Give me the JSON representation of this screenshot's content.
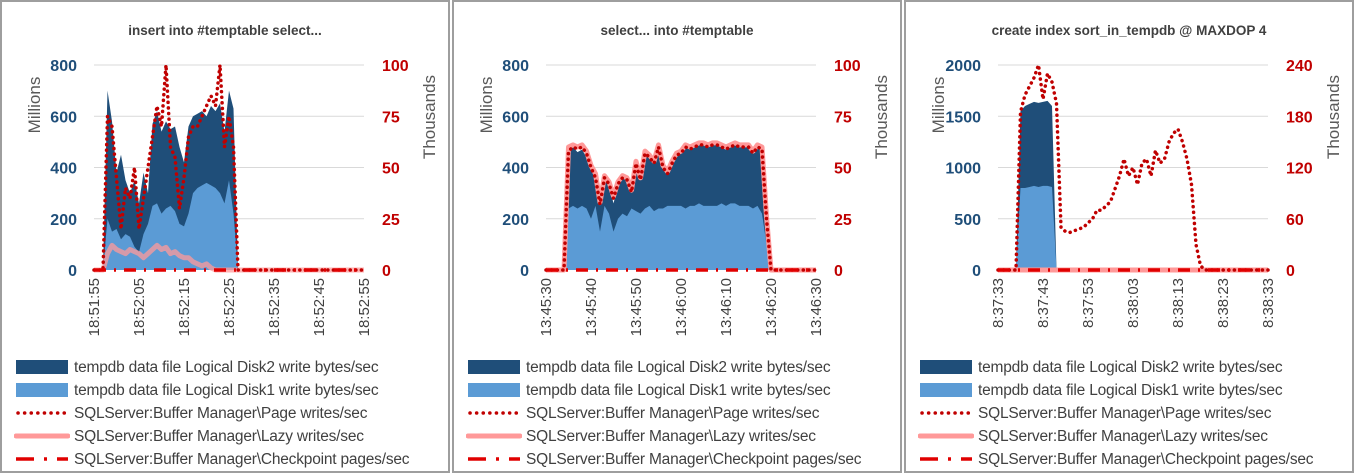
{
  "colors": {
    "disk2": "#1f4e79",
    "disk1": "#5b9bd5",
    "page_writes": "#c00000",
    "lazy_writes": "#ff9999",
    "checkpoint": "#e00000",
    "left_axis_text": "#1f4e79",
    "right_axis_text": "#c00000",
    "grid": "#d9d9d9"
  },
  "legend": [
    {
      "key": "disk2",
      "label": "tempdb data file Logical Disk2 write bytes/sec",
      "style": "area"
    },
    {
      "key": "disk1",
      "label": "tempdb data file Logical Disk1 write bytes/sec",
      "style": "area"
    },
    {
      "key": "page_writes",
      "label": "SQLServer:Buffer Manager\\Page writes/sec",
      "style": "dotted"
    },
    {
      "key": "lazy_writes",
      "label": "SQLServer:Buffer Manager\\Lazy writes/sec",
      "style": "thick"
    },
    {
      "key": "checkpoint",
      "label": "SQLServer:Buffer Manager\\Checkpoint pages/sec",
      "style": "dashdot"
    }
  ],
  "chart_data": [
    {
      "type": "area",
      "title": "insert into #temptable select...",
      "ylabel": "Millions",
      "y2label": "Thousands",
      "ylim": [
        0,
        800
      ],
      "yticks": [
        "0",
        "200",
        "400",
        "600",
        "800"
      ],
      "y2lim": [
        0,
        100
      ],
      "y2ticks": [
        "0",
        "25",
        "50",
        "75",
        "100"
      ],
      "xticks": [
        "18:51:55",
        "18:52:05",
        "18:52:15",
        "18:52:25",
        "18:52:35",
        "18:52:45",
        "18:52:55"
      ],
      "xlim_seconds": [
        0,
        60
      ],
      "x_seconds": [
        0,
        2,
        3,
        4,
        5,
        6,
        7,
        8,
        9,
        10,
        11,
        12,
        13,
        14,
        15,
        16,
        17,
        18,
        19,
        20,
        21,
        22,
        23,
        24,
        25,
        26,
        27,
        28,
        29,
        30,
        31,
        32,
        60
      ],
      "series": [
        {
          "key": "disk1",
          "name": "tempdb data file Logical Disk1 write bytes/sec",
          "axis": "left",
          "values": [
            0,
            0,
            200,
            150,
            160,
            120,
            140,
            130,
            90,
            70,
            140,
            180,
            250,
            260,
            220,
            240,
            250,
            230,
            180,
            170,
            220,
            300,
            320,
            330,
            340,
            330,
            320,
            300,
            260,
            350,
            220,
            0,
            0
          ]
        },
        {
          "key": "disk2",
          "name": "tempdb data file Logical Disk2 write bytes/sec",
          "axis": "left",
          "values": [
            0,
            0,
            700,
            580,
            380,
            450,
            350,
            300,
            350,
            260,
            380,
            300,
            570,
            620,
            540,
            580,
            550,
            560,
            480,
            420,
            560,
            600,
            610,
            620,
            600,
            640,
            620,
            650,
            540,
            700,
            630,
            0,
            0
          ]
        },
        {
          "key": "page_writes",
          "name": "SQLServer:Buffer Manager\\Page writes/sec",
          "axis": "right",
          "values": [
            0,
            0,
            75,
            70,
            45,
            20,
            40,
            35,
            50,
            20,
            35,
            50,
            65,
            80,
            70,
            100,
            60,
            55,
            30,
            45,
            65,
            70,
            70,
            75,
            80,
            85,
            80,
            100,
            60,
            75,
            60,
            0,
            0
          ]
        },
        {
          "key": "lazy_writes",
          "name": "SQLServer:Buffer Manager\\Lazy writes/sec",
          "axis": "right",
          "values": [
            0,
            0,
            8,
            12,
            10,
            9,
            8,
            10,
            9,
            8,
            6,
            8,
            10,
            12,
            10,
            11,
            8,
            9,
            7,
            6,
            6,
            4,
            3,
            2,
            3,
            1,
            0,
            0,
            0,
            0,
            0,
            0,
            0
          ]
        },
        {
          "key": "checkpoint",
          "name": "SQLServer:Buffer Manager\\Checkpoint pages/sec",
          "axis": "right",
          "values": [
            0,
            0,
            0,
            0,
            0,
            0,
            0,
            0,
            0,
            0,
            0,
            0,
            0,
            0,
            0,
            0,
            0,
            0,
            0,
            0,
            0,
            0,
            0,
            0,
            0,
            0,
            0,
            0,
            0,
            0,
            0,
            0,
            0
          ]
        }
      ]
    },
    {
      "type": "area",
      "title": "select... into #temptable",
      "ylabel": "Millions",
      "y2label": "Thousands",
      "ylim": [
        0,
        800
      ],
      "yticks": [
        "0",
        "200",
        "400",
        "600",
        "800"
      ],
      "y2lim": [
        0,
        100
      ],
      "y2ticks": [
        "0",
        "25",
        "50",
        "75",
        "100"
      ],
      "xticks": [
        "13:45:30",
        "13:45:40",
        "13:45:50",
        "13:46:00",
        "13:46:10",
        "13:46:20",
        "13:46:30"
      ],
      "xlim_seconds": [
        0,
        60
      ],
      "x_seconds": [
        0,
        1,
        2,
        3,
        4,
        5,
        6,
        7,
        8,
        9,
        10,
        11,
        12,
        13,
        14,
        15,
        16,
        17,
        18,
        19,
        20,
        21,
        22,
        23,
        24,
        25,
        26,
        27,
        28,
        29,
        30,
        31,
        32,
        33,
        34,
        35,
        36,
        37,
        38,
        39,
        40,
        41,
        42,
        43,
        44,
        45,
        46,
        47,
        48,
        49,
        50,
        51,
        52,
        60
      ],
      "series": [
        {
          "key": "disk1",
          "name": "tempdb data file Logical Disk1 write bytes/sec",
          "axis": "left",
          "values": [
            0,
            0,
            0,
            0,
            0,
            240,
            250,
            240,
            250,
            240,
            200,
            250,
            150,
            250,
            220,
            150,
            200,
            220,
            210,
            240,
            230,
            220,
            240,
            250,
            230,
            240,
            240,
            250,
            250,
            250,
            250,
            240,
            250,
            250,
            260,
            250,
            250,
            250,
            250,
            260,
            250,
            260,
            260,
            250,
            250,
            250,
            240,
            250,
            220,
            100,
            0,
            0,
            0,
            0
          ]
        },
        {
          "key": "disk2",
          "name": "tempdb data file Logical Disk2 write bytes/sec",
          "axis": "left",
          "values": [
            0,
            0,
            0,
            0,
            0,
            470,
            480,
            460,
            470,
            440,
            400,
            380,
            250,
            360,
            330,
            260,
            330,
            360,
            350,
            300,
            420,
            350,
            460,
            440,
            420,
            480,
            400,
            380,
            420,
            450,
            460,
            480,
            470,
            480,
            490,
            490,
            480,
            490,
            490,
            480,
            470,
            480,
            490,
            480,
            480,
            480,
            460,
            480,
            470,
            200,
            0,
            0,
            0,
            0
          ]
        },
        {
          "key": "page_writes",
          "name": "SQLServer:Buffer Manager\\Page writes/sec",
          "axis": "right",
          "values": [
            0,
            0,
            0,
            0,
            0,
            58,
            60,
            59,
            60,
            57,
            50,
            45,
            32,
            45,
            42,
            35,
            42,
            45,
            44,
            38,
            52,
            44,
            57,
            55,
            52,
            60,
            50,
            47,
            52,
            56,
            57,
            60,
            59,
            60,
            61,
            61,
            60,
            61,
            61,
            60,
            59,
            60,
            61,
            60,
            60,
            60,
            57,
            60,
            59,
            25,
            0,
            0,
            0,
            0
          ]
        },
        {
          "key": "lazy_writes",
          "name": "SQLServer:Buffer Manager\\Lazy writes/sec",
          "axis": "right",
          "values": [
            0,
            0,
            0,
            0,
            0,
            60,
            61,
            60,
            61,
            58,
            51,
            47,
            33,
            46,
            43,
            36,
            43,
            46,
            45,
            39,
            53,
            45,
            58,
            56,
            53,
            61,
            51,
            48,
            53,
            57,
            58,
            61,
            60,
            61,
            62,
            62,
            61,
            62,
            62,
            61,
            60,
            61,
            62,
            61,
            61,
            61,
            58,
            61,
            60,
            26,
            0,
            0,
            0,
            0
          ]
        },
        {
          "key": "checkpoint",
          "name": "SQLServer:Buffer Manager\\Checkpoint pages/sec",
          "axis": "right",
          "values": [
            0,
            0,
            0,
            0,
            0,
            0,
            0,
            0,
            0,
            0,
            0,
            0,
            0,
            0,
            0,
            0,
            0,
            0,
            0,
            0,
            0,
            0,
            0,
            0,
            0,
            0,
            0,
            0,
            0,
            0,
            0,
            0,
            0,
            0,
            0,
            0,
            0,
            0,
            0,
            0,
            0,
            0,
            0,
            0,
            0,
            0,
            0,
            0,
            0,
            0,
            0,
            0,
            0,
            0
          ]
        }
      ]
    },
    {
      "type": "area",
      "title": "create index sort_in_tempdb @ MAXDOP 4",
      "ylabel": "Millions",
      "y2label": "Thousands",
      "ylim": [
        0,
        2000
      ],
      "yticks": [
        "0",
        "500",
        "1000",
        "1500",
        "2000"
      ],
      "y2lim": [
        0,
        240
      ],
      "y2ticks": [
        "0",
        "60",
        "120",
        "180",
        "240"
      ],
      "xticks": [
        "8:37:33",
        "8:37:43",
        "8:37:53",
        "8:38:03",
        "8:38:13",
        "8:38:23",
        "8:38:33"
      ],
      "xlim_seconds": [
        0,
        60
      ],
      "x_seconds": [
        0,
        1,
        2,
        3,
        4,
        5,
        6,
        7,
        8,
        9,
        10,
        11,
        12,
        13,
        14,
        15,
        16,
        17,
        18,
        19,
        20,
        21,
        22,
        23,
        24,
        25,
        26,
        27,
        28,
        29,
        30,
        31,
        32,
        33,
        34,
        35,
        36,
        37,
        38,
        39,
        40,
        41,
        42,
        43,
        44,
        45,
        46,
        47,
        48,
        49,
        50,
        51,
        52,
        53,
        60
      ],
      "series": [
        {
          "key": "disk1",
          "name": "tempdb data file Logical Disk1 write bytes/sec",
          "axis": "left",
          "values": [
            0,
            0,
            0,
            0,
            0,
            800,
            800,
            810,
            820,
            810,
            820,
            820,
            810,
            0,
            0,
            0,
            0,
            0,
            0,
            0,
            0,
            0,
            0,
            0,
            0,
            0,
            0,
            0,
            0,
            0,
            0,
            0,
            0,
            0,
            0,
            0,
            0,
            0,
            0,
            0,
            0,
            0,
            0,
            0,
            0,
            0,
            0,
            0,
            0,
            0,
            0,
            0,
            0,
            0,
            0
          ]
        },
        {
          "key": "disk2",
          "name": "tempdb data file Logical Disk2 write bytes/sec",
          "axis": "left",
          "values": [
            0,
            0,
            0,
            0,
            0,
            1550,
            1600,
            1620,
            1640,
            1630,
            1640,
            1650,
            1600,
            0,
            0,
            0,
            0,
            0,
            0,
            0,
            0,
            0,
            0,
            0,
            0,
            0,
            0,
            0,
            0,
            0,
            0,
            0,
            0,
            0,
            0,
            0,
            0,
            0,
            0,
            0,
            0,
            0,
            0,
            0,
            0,
            0,
            0,
            0,
            0,
            0,
            0,
            0,
            0,
            0,
            0
          ]
        },
        {
          "key": "page_writes",
          "name": "SQLServer:Buffer Manager\\Page writes/sec",
          "axis": "right",
          "values": [
            0,
            0,
            0,
            0,
            0,
            185,
            205,
            215,
            225,
            240,
            200,
            230,
            220,
            195,
            50,
            45,
            44,
            46,
            48,
            50,
            55,
            60,
            70,
            70,
            75,
            80,
            95,
            110,
            130,
            110,
            120,
            100,
            125,
            130,
            110,
            140,
            125,
            130,
            150,
            160,
            165,
            150,
            130,
            100,
            30,
            5,
            0,
            0,
            0,
            0,
            0,
            0,
            0,
            0,
            0
          ]
        },
        {
          "key": "lazy_writes",
          "name": "SQLServer:Buffer Manager\\Lazy writes/sec",
          "axis": "right",
          "values": [
            0,
            0,
            0,
            0,
            0,
            0,
            0,
            0,
            0,
            0,
            0,
            0,
            0,
            0,
            0,
            0,
            0,
            0,
            0,
            0,
            0,
            0,
            0,
            0,
            0,
            0,
            0,
            0,
            0,
            0,
            0,
            0,
            0,
            0,
            0,
            0,
            0,
            0,
            0,
            0,
            0,
            0,
            0,
            0,
            0,
            0,
            0,
            0,
            0,
            0,
            0,
            0,
            0,
            0,
            0
          ]
        },
        {
          "key": "checkpoint",
          "name": "SQLServer:Buffer Manager\\Checkpoint pages/sec",
          "axis": "right",
          "values": [
            0,
            0,
            0,
            0,
            0,
            0,
            0,
            0,
            0,
            0,
            0,
            0,
            0,
            0,
            0,
            0,
            0,
            0,
            0,
            0,
            0,
            0,
            0,
            0,
            0,
            0,
            0,
            0,
            0,
            0,
            0,
            0,
            0,
            0,
            0,
            0,
            0,
            0,
            0,
            0,
            0,
            0,
            0,
            0,
            0,
            0,
            0,
            0,
            0,
            0,
            0,
            0,
            0,
            0,
            0
          ]
        }
      ]
    }
  ]
}
